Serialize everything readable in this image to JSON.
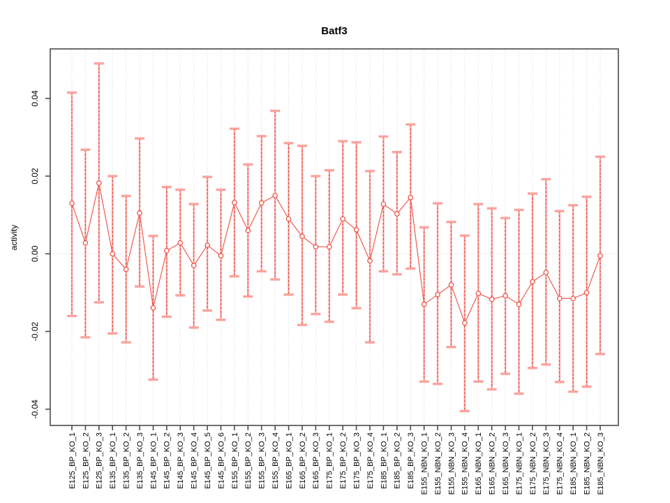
{
  "title": "Batf3",
  "chart_data": {
    "type": "scatter",
    "title": "Batf3",
    "xlabel": "",
    "ylabel": "activity",
    "ylim": [
      -0.044,
      0.053
    ],
    "grid": "dotted vertical gridline per category; dotted horizontal line at y=0",
    "legend": "none",
    "yticks": {
      "values": [
        0.04,
        0.02,
        0,
        -0.02,
        -0.04
      ],
      "labels": [
        "0.04",
        "0.02",
        "0.00",
        "-0.02",
        "-0.04"
      ]
    },
    "categories": [
      "E125_BP_KO_1",
      "E125_BP_KO_2",
      "E125_BP_KO_3",
      "E135_BP_KO_1",
      "E135_BP_KO_2",
      "E135_BP_KO_3",
      "E145_BP_KO_1",
      "E145_BP_KO_2",
      "E145_BP_KO_3",
      "E145_BP_KO_4",
      "E145_BP_KO_5",
      "E145_BP_KO_6",
      "E155_BP_KO_1",
      "E155_BP_KO_2",
      "E155_BP_KO_3",
      "E155_BP_KO_4",
      "E165_BP_KO_1",
      "E165_BP_KO_2",
      "E165_BP_KO_3",
      "E175_BP_KO_1",
      "E175_BP_KO_2",
      "E175_BP_KO_3",
      "E175_BP_KO_4",
      "E185_BP_KO_1",
      "E185_BP_KO_2",
      "E185_BP_KO_3",
      "E155_NBN_KO_1",
      "E155_NBN_KO_2",
      "E155_NBN_KO_3",
      "E155_NBN_KO_4",
      "E165_NBN_KO_1",
      "E165_NBN_KO_2",
      "E165_NBN_KO_3",
      "E175_NBN_KO_1",
      "E175_NBN_KO_2",
      "E175_NBN_KO_3",
      "E175_NBN_KO_4",
      "E185_NBN_KO_1",
      "E185_NBN_KO_2",
      "E185_NBN_KO_3"
    ],
    "series": [
      {
        "name": "activity_mean",
        "values": [
          0.013,
          0.0028,
          0.0182,
          0.0,
          -0.004,
          0.0105,
          -0.0139,
          0.0008,
          0.0028,
          -0.003,
          0.0022,
          -0.0005,
          0.0132,
          0.006,
          0.0131,
          0.015,
          0.009,
          0.0045,
          0.0018,
          0.0018,
          0.009,
          0.0062,
          -0.0018,
          0.0128,
          0.0103,
          0.0145,
          -0.013,
          -0.0105,
          -0.008,
          -0.0178,
          -0.0102,
          -0.0117,
          -0.0108,
          -0.013,
          -0.0072,
          -0.0048,
          -0.0115,
          -0.0115,
          -0.01,
          -0.0005
        ]
      },
      {
        "name": "upper_error",
        "values": [
          0.0415,
          0.0268,
          0.049,
          0.02,
          0.0149,
          0.0297,
          0.0046,
          0.0172,
          0.0165,
          0.0128,
          0.0198,
          0.0165,
          0.0322,
          0.023,
          0.0303,
          0.0368,
          0.0285,
          0.0278,
          0.02,
          0.0215,
          0.029,
          0.0287,
          0.0213,
          0.0302,
          0.0262,
          0.0333,
          0.0068,
          0.013,
          0.0082,
          0.0047,
          0.0128,
          0.0117,
          0.0092,
          0.0113,
          0.0155,
          0.0192,
          0.011,
          0.0125,
          0.0147,
          0.025
        ]
      },
      {
        "name": "lower_error",
        "values": [
          -0.016,
          -0.0215,
          -0.0125,
          -0.0205,
          -0.0228,
          -0.0084,
          -0.0324,
          -0.0162,
          -0.0107,
          -0.019,
          -0.0146,
          -0.017,
          -0.0058,
          -0.011,
          -0.0045,
          -0.0066,
          -0.0105,
          -0.0183,
          -0.0155,
          -0.0175,
          -0.0105,
          -0.014,
          -0.0228,
          -0.0045,
          -0.0053,
          -0.0038,
          -0.0329,
          -0.0335,
          -0.024,
          -0.0405,
          -0.0329,
          -0.0349,
          -0.0309,
          -0.036,
          -0.0294,
          -0.0285,
          -0.033,
          -0.0355,
          -0.0342,
          -0.0258
        ]
      }
    ],
    "colors": {
      "point": "#ee4b40",
      "line": "#f05a50",
      "error_cap": "#fba39d",
      "error_stem_base": "#f9aaa5",
      "error_stem_dash": "#e84a42",
      "grid": "#dbdbdb",
      "axis": "#4a4a4a",
      "text": "#000000",
      "background": "#ffffff"
    }
  }
}
